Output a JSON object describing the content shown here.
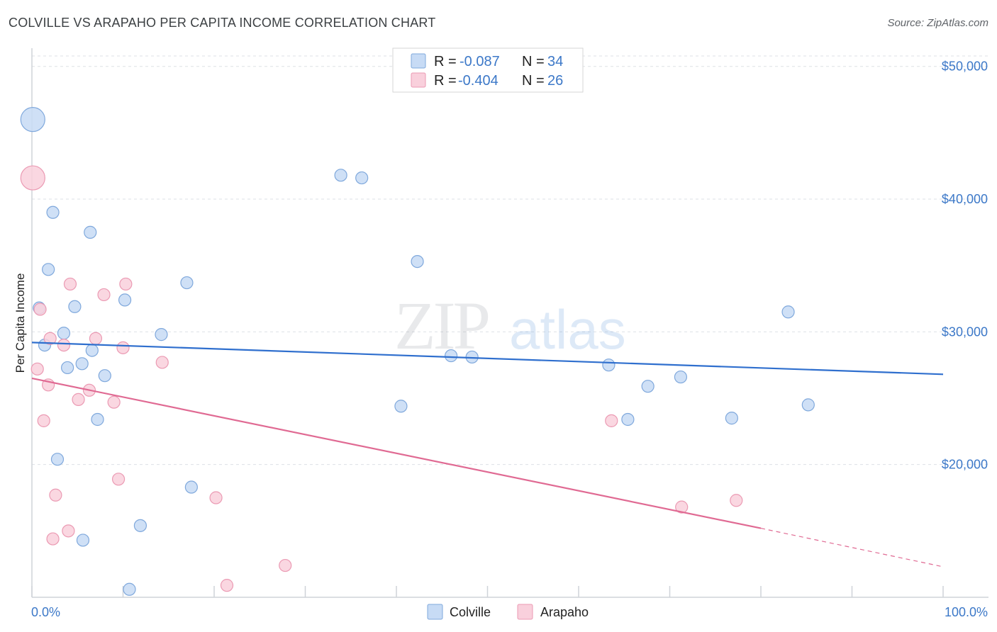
{
  "header": {
    "title": "COLVILLE VS ARAPAHO PER CAPITA INCOME CORRELATION CHART",
    "source": "Source: ZipAtlas.com"
  },
  "watermark": {
    "zip": "ZIP",
    "atlas": "atlas"
  },
  "legend": {
    "rows": [
      {
        "r_label": "R =",
        "r_value": "-0.087",
        "n_label": "N =",
        "n_value": "34",
        "color": "#a8c8f0"
      },
      {
        "r_label": "R =",
        "r_value": "-0.404",
        "n_label": "N =",
        "n_value": "26",
        "color": "#f5b8ca"
      }
    ]
  },
  "colors": {
    "colville_fill": "#c7dbf5",
    "colville_stroke": "#7fa8dc",
    "colville_line": "#2f6fce",
    "arapaho_fill": "#f9d0dc",
    "arapaho_stroke": "#eb9ab3",
    "arapaho_line": "#e06a93",
    "tick_label": "#3c78c8"
  },
  "chart_data": {
    "type": "scatter",
    "title": "COLVILLE VS ARAPAHO PER CAPITA INCOME CORRELATION CHART",
    "xlabel": "",
    "ylabel": "Per Capita Income",
    "xlim": [
      0,
      100
    ],
    "ylim": [
      10000,
      51000
    ],
    "x_tick_labels": [
      "0.0%",
      "100.0%"
    ],
    "y_ticks": [
      20000,
      30000,
      40000,
      50000
    ],
    "y_tick_labels": [
      "$20,000",
      "$30,000",
      "$40,000",
      "$50,000"
    ],
    "grid": true,
    "legend_position": "top-center",
    "series": [
      {
        "name": "Colville",
        "r": -0.087,
        "n": 34,
        "trend": {
          "x": [
            0,
            100
          ],
          "y": [
            29200,
            26800
          ]
        },
        "points": [
          {
            "x": 0.1,
            "y": 46000,
            "big": true
          },
          {
            "x": 2.3,
            "y": 39000
          },
          {
            "x": 6.4,
            "y": 37500
          },
          {
            "x": 1.8,
            "y": 34700
          },
          {
            "x": 0.8,
            "y": 31800
          },
          {
            "x": 4.7,
            "y": 31900
          },
          {
            "x": 10.2,
            "y": 32400
          },
          {
            "x": 17.0,
            "y": 33700
          },
          {
            "x": 1.4,
            "y": 29000
          },
          {
            "x": 3.5,
            "y": 29900
          },
          {
            "x": 14.2,
            "y": 29800
          },
          {
            "x": 6.6,
            "y": 28600
          },
          {
            "x": 3.9,
            "y": 27300
          },
          {
            "x": 5.5,
            "y": 27600
          },
          {
            "x": 8.0,
            "y": 26700
          },
          {
            "x": 7.2,
            "y": 23400
          },
          {
            "x": 2.8,
            "y": 20400
          },
          {
            "x": 17.5,
            "y": 18300
          },
          {
            "x": 11.9,
            "y": 15400
          },
          {
            "x": 5.6,
            "y": 14300
          },
          {
            "x": 10.7,
            "y": 10600
          },
          {
            "x": 33.9,
            "y": 41800
          },
          {
            "x": 36.2,
            "y": 41600
          },
          {
            "x": 42.3,
            "y": 35300
          },
          {
            "x": 46.0,
            "y": 28200
          },
          {
            "x": 48.3,
            "y": 28100
          },
          {
            "x": 40.5,
            "y": 24400
          },
          {
            "x": 63.3,
            "y": 27500
          },
          {
            "x": 67.6,
            "y": 25900
          },
          {
            "x": 71.2,
            "y": 26600
          },
          {
            "x": 65.4,
            "y": 23400
          },
          {
            "x": 76.8,
            "y": 23500
          },
          {
            "x": 83.0,
            "y": 31500
          },
          {
            "x": 85.2,
            "y": 24500
          }
        ]
      },
      {
        "name": "Arapaho",
        "r": -0.404,
        "n": 26,
        "trend": {
          "x": [
            0,
            80
          ],
          "y": [
            26500,
            15200
          ]
        },
        "trend_dashed": {
          "x": [
            80,
            100
          ],
          "y": [
            15200,
            12300
          ]
        },
        "points": [
          {
            "x": 0.1,
            "y": 41600,
            "big": true
          },
          {
            "x": 0.9,
            "y": 31700
          },
          {
            "x": 2.0,
            "y": 29500
          },
          {
            "x": 4.2,
            "y": 33600
          },
          {
            "x": 7.9,
            "y": 32800
          },
          {
            "x": 10.3,
            "y": 33600
          },
          {
            "x": 3.5,
            "y": 29000
          },
          {
            "x": 7.0,
            "y": 29500
          },
          {
            "x": 10.0,
            "y": 28800
          },
          {
            "x": 14.3,
            "y": 27700
          },
          {
            "x": 0.6,
            "y": 27200
          },
          {
            "x": 1.8,
            "y": 26000
          },
          {
            "x": 6.3,
            "y": 25600
          },
          {
            "x": 5.1,
            "y": 24900
          },
          {
            "x": 9.0,
            "y": 24700
          },
          {
            "x": 1.3,
            "y": 23300
          },
          {
            "x": 9.5,
            "y": 18900
          },
          {
            "x": 2.6,
            "y": 17700
          },
          {
            "x": 20.2,
            "y": 17500
          },
          {
            "x": 4.0,
            "y": 15000
          },
          {
            "x": 2.3,
            "y": 14400
          },
          {
            "x": 27.8,
            "y": 12400
          },
          {
            "x": 21.4,
            "y": 10900
          },
          {
            "x": 63.6,
            "y": 23300
          },
          {
            "x": 71.3,
            "y": 16800
          },
          {
            "x": 77.3,
            "y": 17300
          }
        ]
      }
    ]
  },
  "bottom_legend": {
    "items": [
      "Colville",
      "Arapaho"
    ]
  }
}
